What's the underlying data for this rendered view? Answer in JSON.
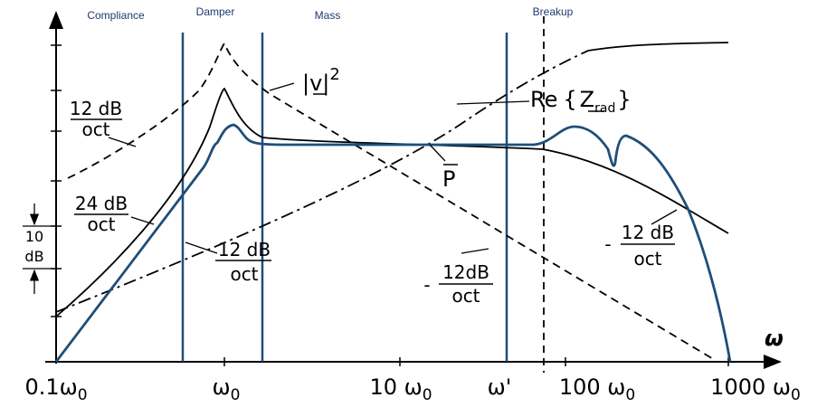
{
  "regions": [
    "Compliance",
    "Damper",
    "Mass",
    "Breakup"
  ],
  "slopes": {
    "left_upper": {
      "num": "12 dB",
      "den": "oct"
    },
    "left_lower": {
      "num": "24 dB",
      "den": "oct"
    },
    "left_mid": {
      "num": "12 dB",
      "den": "oct"
    },
    "right_mid": {
      "sign": "-",
      "num": "12dB",
      "den": "oct"
    },
    "right": {
      "sign": "-",
      "num": "12 dB",
      "den": "oct"
    }
  },
  "scale": {
    "top": "10",
    "bottom": "dB"
  },
  "curves": {
    "velocity": {
      "body": "|v|",
      "sup": "2"
    },
    "radiation": {
      "prefix": "Re",
      "open": "{",
      "symbol": "Z",
      "sub": "rad",
      "close": "}"
    },
    "power": "P"
  },
  "x_labels": [
    {
      "base": "0.1ω",
      "sub": "0"
    },
    {
      "base": "ω",
      "sub": "0"
    },
    {
      "base": "10 ω",
      "sub": "0"
    },
    {
      "base": "ω'"
    },
    {
      "base": "100 ω",
      "sub": "0"
    },
    {
      "base": "1000 ω",
      "sub": "0"
    }
  ],
  "x_axis": "ω"
}
